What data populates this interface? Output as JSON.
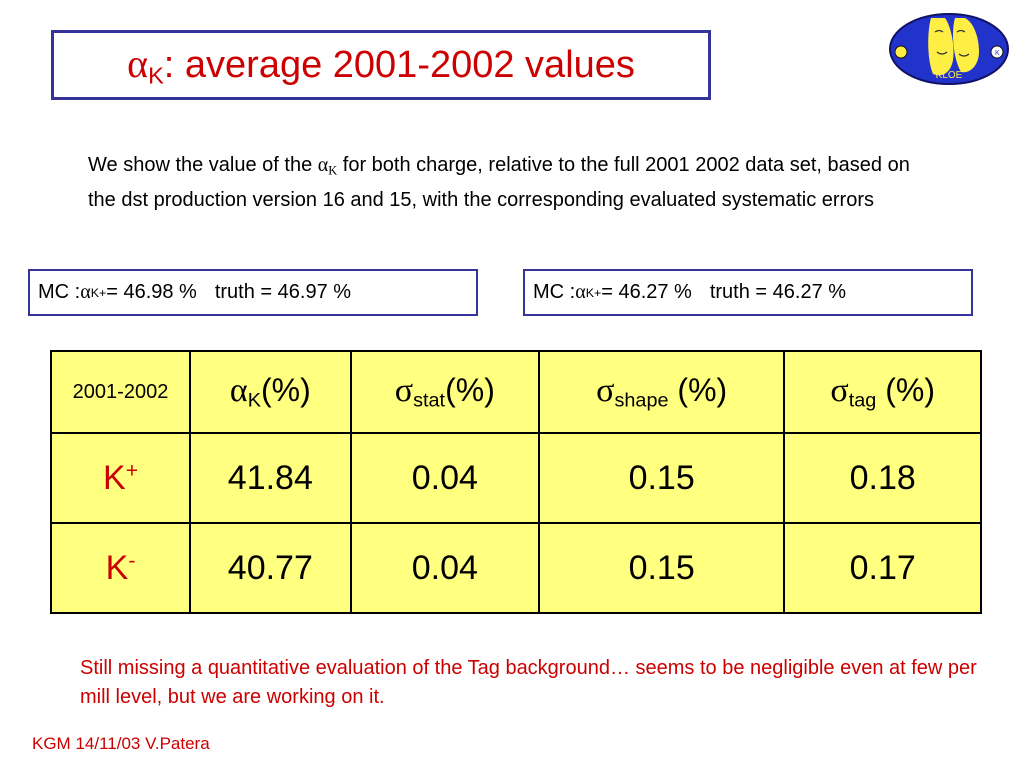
{
  "title": {
    "symbol": "α",
    "subscript": "K",
    "text": ": average 2001-2002 values"
  },
  "intro": {
    "before": "We show the value of the ",
    "symbol": "α",
    "subscript": "K",
    "after": " for both charge, relative to the full 2001 2002 data set, based on the dst production version 16 and 15, with the corresponding evaluated systematic errors"
  },
  "mc_boxes": [
    {
      "prefix": "MC : ",
      "symbol": "α",
      "subscript": "K",
      "superscript": "+",
      "value": " = 46.98 %",
      "truth": "truth = 46.97 %"
    },
    {
      "prefix": "MC : ",
      "symbol": "α",
      "subscript": "K",
      "superscript": "+",
      "value": " = 46.27 %",
      "truth": "truth = 46.27 %"
    }
  ],
  "table": {
    "corner": "2001-2002",
    "headers": [
      {
        "symbol": "α",
        "subscript": "K",
        "unit": "(%)"
      },
      {
        "symbol": "σ",
        "subscript": "stat",
        "unit": "(%)"
      },
      {
        "symbol": "σ",
        "subscript": "shape",
        "unit": " (%)"
      },
      {
        "symbol": "σ",
        "subscript": "tag",
        "unit": " (%)"
      }
    ],
    "rows": [
      {
        "label": "K",
        "charge": "+",
        "values": [
          "41.84",
          "0.04",
          "0.15",
          "0.18"
        ]
      },
      {
        "label": "K",
        "charge": "-",
        "values": [
          "40.77",
          "0.04",
          "0.15",
          "0.17"
        ]
      }
    ]
  },
  "note": "Still missing a quantitative evaluation of the Tag background… seems to be negligible even at few per mill level, but we are working on it.",
  "footer": "KGM 14/11/03 V.Patera",
  "logo": {
    "text": "KLOE",
    "icon": "kloe-logo"
  },
  "colors": {
    "title": "#cc0000",
    "border": "#333399",
    "table_fill": "#ffff80",
    "accent_red": "#cc0000"
  }
}
